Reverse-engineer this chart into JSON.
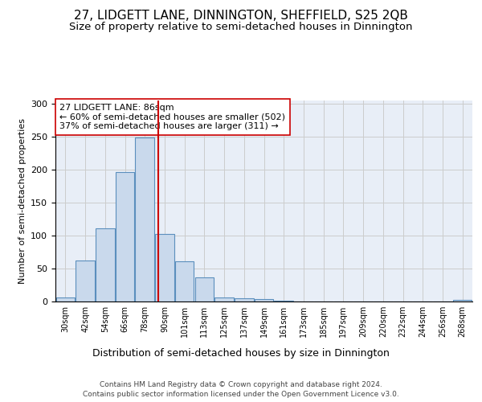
{
  "title": "27, LIDGETT LANE, DINNINGTON, SHEFFIELD, S25 2QB",
  "subtitle": "Size of property relative to semi-detached houses in Dinnington",
  "xlabel": "Distribution of semi-detached houses by size in Dinnington",
  "ylabel": "Number of semi-detached properties",
  "bin_labels": [
    "30sqm",
    "42sqm",
    "54sqm",
    "66sqm",
    "78sqm",
    "90sqm",
    "101sqm",
    "113sqm",
    "125sqm",
    "137sqm",
    "149sqm",
    "161sqm",
    "173sqm",
    "185sqm",
    "197sqm",
    "209sqm",
    "220sqm",
    "232sqm",
    "244sqm",
    "256sqm",
    "268sqm"
  ],
  "bar_heights": [
    6,
    62,
    111,
    197,
    249,
    103,
    61,
    36,
    6,
    5,
    4,
    1,
    0,
    0,
    0,
    0,
    0,
    0,
    0,
    0,
    3
  ],
  "bar_color": "#c9d9ec",
  "bar_edge_color": "#5b8fbd",
  "property_line_color": "#cc0000",
  "annotation_text": "27 LIDGETT LANE: 86sqm\n← 60% of semi-detached houses are smaller (502)\n37% of semi-detached houses are larger (311) →",
  "annotation_box_color": "#ffffff",
  "annotation_box_edge": "#cc0000",
  "ylim": [
    0,
    305
  ],
  "yticks": [
    0,
    50,
    100,
    150,
    200,
    250,
    300
  ],
  "grid_color": "#cccccc",
  "background_color": "#e8eef7",
  "title_fontsize": 11,
  "subtitle_fontsize": 9.5,
  "xlabel_fontsize": 9,
  "ylabel_fontsize": 8,
  "footer_line1": "Contains HM Land Registry data © Crown copyright and database right 2024.",
  "footer_line2": "Contains public sector information licensed under the Open Government Licence v3.0."
}
